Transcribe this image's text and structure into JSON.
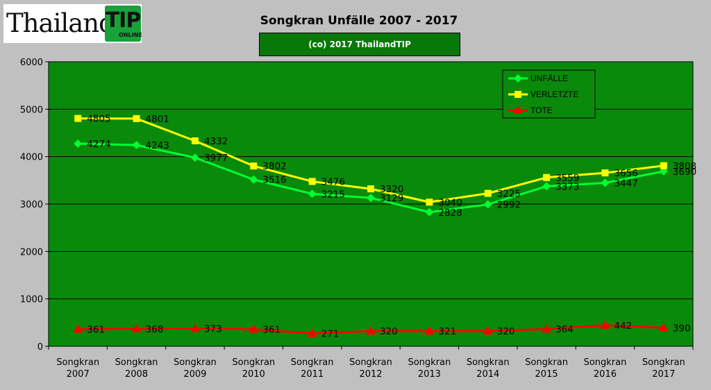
{
  "logo": {
    "text": "Thailand",
    "badge_main": "TIP",
    "badge_sub": "ONLINE"
  },
  "title": "Songkran Unfälle 2007 - 2017",
  "subtitle": "(co) 2017 ThailandTIP",
  "colors": {
    "page": "#c0c0c0",
    "plot": "#0a8a0a",
    "unfaelle": "#00ff33",
    "verletzte": "#ffff00",
    "tote": "#ff0000"
  },
  "chart_data": {
    "type": "line",
    "title": "Songkran Unfälle 2007 - 2017",
    "subtitle": "(co) 2017 ThailandTIP",
    "categories": [
      [
        "Songkran",
        "2007"
      ],
      [
        "Songkran",
        "2008"
      ],
      [
        "Songkran",
        "2009"
      ],
      [
        "Songkran",
        "2010"
      ],
      [
        "Songkran",
        "2011"
      ],
      [
        "Songkran",
        "2012"
      ],
      [
        "Songkran",
        "2013"
      ],
      [
        "Songkran",
        "2014"
      ],
      [
        "Songkran",
        "2015"
      ],
      [
        "Songkran",
        "2016"
      ],
      [
        "Songkran",
        "2017"
      ]
    ],
    "ylim": [
      0,
      6000
    ],
    "yticks": [
      0,
      1000,
      2000,
      3000,
      4000,
      5000,
      6000
    ],
    "grid": true,
    "legend_position": "top-right",
    "series": [
      {
        "name": "UNFÄLLE",
        "color": "#00ff33",
        "marker": "diamond",
        "values": [
          4274,
          4243,
          3977,
          3516,
          3215,
          3129,
          2828,
          2992,
          3373,
          3447,
          3690
        ]
      },
      {
        "name": "VERLETZTE",
        "color": "#ffff00",
        "marker": "square",
        "values": [
          4805,
          4801,
          4332,
          3802,
          3476,
          3320,
          3040,
          3225,
          3559,
          3656,
          3808
        ]
      },
      {
        "name": "TOTE",
        "color": "#ff0000",
        "marker": "triangle",
        "values": [
          361,
          368,
          373,
          361,
          271,
          320,
          321,
          320,
          364,
          442,
          390
        ]
      }
    ]
  }
}
